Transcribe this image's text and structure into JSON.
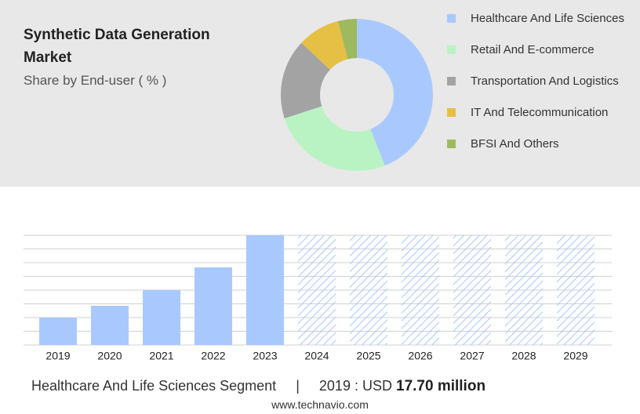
{
  "chart_data": [
    {
      "type": "pie",
      "title": "Synthetic Data Generation Market",
      "subtitle": "Share by End-user ( % )",
      "categories": [
        "Healthcare And Life Sciences",
        "Retail And E-commerce",
        "Transportation And Logistics",
        "IT And Telecommunication",
        "BFSI And Others"
      ],
      "values": [
        44,
        26,
        17,
        9,
        4
      ],
      "colors": [
        "#a9c9fe",
        "#b9f3c3",
        "#a3a3a3",
        "#e6bf45",
        "#9fba5e"
      ]
    },
    {
      "type": "bar",
      "categories": [
        "2019",
        "2020",
        "2021",
        "2022",
        "2023",
        "2024",
        "2025",
        "2026",
        "2027",
        "2028",
        "2029"
      ],
      "values": [
        17.7,
        25.3,
        35.4,
        50.1,
        70.8,
        null,
        null,
        null,
        null,
        null,
        null
      ],
      "color": "#a9c9fe",
      "ylim": [
        0,
        70.8
      ],
      "grid": true
    }
  ],
  "footer": {
    "segment": "Healthcare And Life Sciences Segment",
    "year": "2019",
    "currency": "USD",
    "value": "17.70 million"
  },
  "website": "www.technavio.com"
}
